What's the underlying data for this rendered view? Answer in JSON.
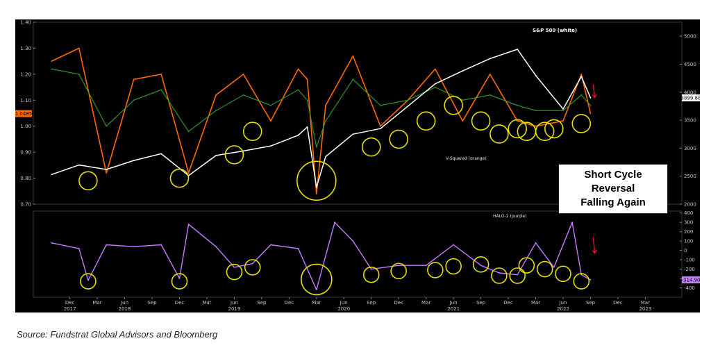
{
  "chart_data": [
    {
      "type": "line",
      "panel": "top",
      "labels": {
        "sp500": "S&P 500 (white)",
        "vsquared": "V-Squared (orange)",
        "sp_last": "3899.88",
        "v_last": "1.0485"
      },
      "ylim_left": [
        0.7,
        1.4
      ],
      "yticks_left": [
        "1.40",
        "1.30",
        "1.20",
        "1.10",
        "1.00",
        "0.90",
        "0.80",
        "0.70"
      ],
      "ylim_right": [
        2000,
        5250
      ],
      "yticks_right": [
        "5000",
        "4500",
        "4000",
        "3500",
        "3000",
        "2500",
        "2000"
      ],
      "x": [
        "2017-10",
        "2018-01",
        "2018-04",
        "2018-07",
        "2018-10",
        "2019-01",
        "2019-04",
        "2019-07",
        "2019-10",
        "2020-01",
        "2020-02",
        "2020-03",
        "2020-04",
        "2020-07",
        "2020-10",
        "2021-01",
        "2021-04",
        "2021-07",
        "2021-10",
        "2022-01",
        "2022-03",
        "2022-06",
        "2022-08",
        "2022-09"
      ],
      "series": [
        {
          "name": "S&P 500 (white)",
          "color": "#ffffff",
          "axis": "right",
          "values": [
            2530,
            2700,
            2620,
            2780,
            2900,
            2510,
            2870,
            2950,
            3040,
            3230,
            3380,
            2300,
            2850,
            3250,
            3350,
            3750,
            4150,
            4380,
            4600,
            4766,
            4300,
            3700,
            4280,
            3900
          ]
        },
        {
          "name": "V-Squared (orange)",
          "color": "#ff6a00",
          "axis": "left",
          "values": [
            1.25,
            1.3,
            0.82,
            1.18,
            1.2,
            0.82,
            1.12,
            1.2,
            1.02,
            1.22,
            1.18,
            0.74,
            1.08,
            1.27,
            1.0,
            1.1,
            1.22,
            1.02,
            1.2,
            1.02,
            1.0,
            1.02,
            1.2,
            1.0485
          ]
        },
        {
          "name": "smoothed",
          "color": "#2aa02a",
          "axis": "left",
          "values": [
            1.22,
            1.2,
            1.0,
            1.1,
            1.14,
            0.98,
            1.06,
            1.12,
            1.08,
            1.14,
            1.1,
            0.92,
            1.02,
            1.18,
            1.08,
            1.1,
            1.15,
            1.1,
            1.12,
            1.08,
            1.06,
            1.06,
            1.12,
            1.08
          ]
        }
      ],
      "highlight_circles": [
        {
          "x": "2018-02",
          "y": 0.79
        },
        {
          "x": "2018-12",
          "y": 0.8
        },
        {
          "x": "2019-06",
          "y": 0.89
        },
        {
          "x": "2019-08",
          "y": 0.98
        },
        {
          "x": "2020-03",
          "y": 0.79
        },
        {
          "x": "2020-09",
          "y": 0.92
        },
        {
          "x": "2020-12",
          "y": 0.95
        },
        {
          "x": "2021-03",
          "y": 1.02
        },
        {
          "x": "2021-06",
          "y": 1.08
        },
        {
          "x": "2021-09",
          "y": 1.02
        },
        {
          "x": "2021-11",
          "y": 0.97
        },
        {
          "x": "2022-01",
          "y": 0.99
        },
        {
          "x": "2022-02",
          "y": 0.98
        },
        {
          "x": "2022-04",
          "y": 0.98
        },
        {
          "x": "2022-05",
          "y": 0.99
        },
        {
          "x": "2022-08",
          "y": 1.01
        }
      ]
    },
    {
      "type": "line",
      "panel": "bottom",
      "labels": {
        "halo": "HALO-2 (purple)",
        "halo_last": "-314.90"
      },
      "ylim": [
        -500,
        420
      ],
      "yticks": [
        "400",
        "300",
        "200",
        "100",
        "0",
        "-100",
        "-200",
        "-300",
        "-400"
      ],
      "x": [
        "2017-10",
        "2018-01",
        "2018-02",
        "2018-04",
        "2018-07",
        "2018-10",
        "2018-12",
        "2019-01",
        "2019-04",
        "2019-06",
        "2019-08",
        "2019-10",
        "2020-01",
        "2020-03",
        "2020-05",
        "2020-07",
        "2020-09",
        "2020-12",
        "2021-03",
        "2021-06",
        "2021-09",
        "2021-11",
        "2022-01",
        "2022-03",
        "2022-05",
        "2022-07",
        "2022-08",
        "2022-09"
      ],
      "series": [
        {
          "name": "HALO-2 (purple)",
          "color": "#c77dff",
          "values": [
            80,
            20,
            -320,
            60,
            40,
            60,
            -300,
            280,
            40,
            -180,
            -140,
            60,
            20,
            -420,
            300,
            100,
            -200,
            -160,
            -160,
            60,
            -160,
            -240,
            -260,
            80,
            -180,
            300,
            -260,
            -314.9
          ]
        }
      ],
      "highlight_circles": [
        {
          "x": "2018-02",
          "y": -330
        },
        {
          "x": "2018-12",
          "y": -330
        },
        {
          "x": "2019-06",
          "y": -230
        },
        {
          "x": "2019-08",
          "y": -180
        },
        {
          "x": "2020-03",
          "y": -310
        },
        {
          "x": "2020-09",
          "y": -260
        },
        {
          "x": "2020-12",
          "y": -220
        },
        {
          "x": "2021-04",
          "y": -210
        },
        {
          "x": "2021-06",
          "y": -170
        },
        {
          "x": "2021-09",
          "y": -150
        },
        {
          "x": "2021-11",
          "y": -270
        },
        {
          "x": "2022-01",
          "y": -270
        },
        {
          "x": "2022-02",
          "y": -160
        },
        {
          "x": "2022-04",
          "y": -200
        },
        {
          "x": "2022-06",
          "y": -250
        },
        {
          "x": "2022-08",
          "y": -330
        }
      ]
    }
  ],
  "x_axis": {
    "ticks": [
      {
        "month": "2017-12",
        "label": "Dec"
      },
      {
        "month": "2018-03",
        "label": "Mar"
      },
      {
        "month": "2018-06",
        "label": "Jun"
      },
      {
        "month": "2018-09",
        "label": "Sep"
      },
      {
        "month": "2018-12",
        "label": "Dec"
      },
      {
        "month": "2019-03",
        "label": "Mar"
      },
      {
        "month": "2019-06",
        "label": "Jun"
      },
      {
        "month": "2019-09",
        "label": "Sep"
      },
      {
        "month": "2019-12",
        "label": "Dec"
      },
      {
        "month": "2020-03",
        "label": "Mar"
      },
      {
        "month": "2020-06",
        "label": "Jun"
      },
      {
        "month": "2020-09",
        "label": "Sep"
      },
      {
        "month": "2020-12",
        "label": "Dec"
      },
      {
        "month": "2021-03",
        "label": "Mar"
      },
      {
        "month": "2021-06",
        "label": "Jun"
      },
      {
        "month": "2021-09",
        "label": "Sep"
      },
      {
        "month": "2021-12",
        "label": "Dec"
      },
      {
        "month": "2022-03",
        "label": "Mar"
      },
      {
        "month": "2022-06",
        "label": "Jun"
      },
      {
        "month": "2022-09",
        "label": "Sep"
      },
      {
        "month": "2022-12",
        "label": "Dec"
      },
      {
        "month": "2023-03",
        "label": "Mar"
      }
    ],
    "years": [
      {
        "month": "2017-12",
        "label": "2017"
      },
      {
        "month": "2018-06",
        "label": "2018"
      },
      {
        "month": "2019-06",
        "label": "2019"
      },
      {
        "month": "2020-06",
        "label": "2020"
      },
      {
        "month": "2021-06",
        "label": "2021"
      },
      {
        "month": "2022-06",
        "label": "2022"
      },
      {
        "month": "2023-03",
        "label": "2023"
      }
    ]
  },
  "callout": {
    "line1": "Short Cycle",
    "line2": "Reversal",
    "line3": "Falling Again"
  },
  "source": "Source:  Fundstrat Global Advisors and Bloomberg",
  "colors": {
    "background": "#000000",
    "sp500": "#ffffff",
    "vsquared": "#ff6a00",
    "smooth": "#2aa02a",
    "halo": "#c77dff",
    "circle": "#e8e000",
    "arrow": "#e0102a"
  }
}
